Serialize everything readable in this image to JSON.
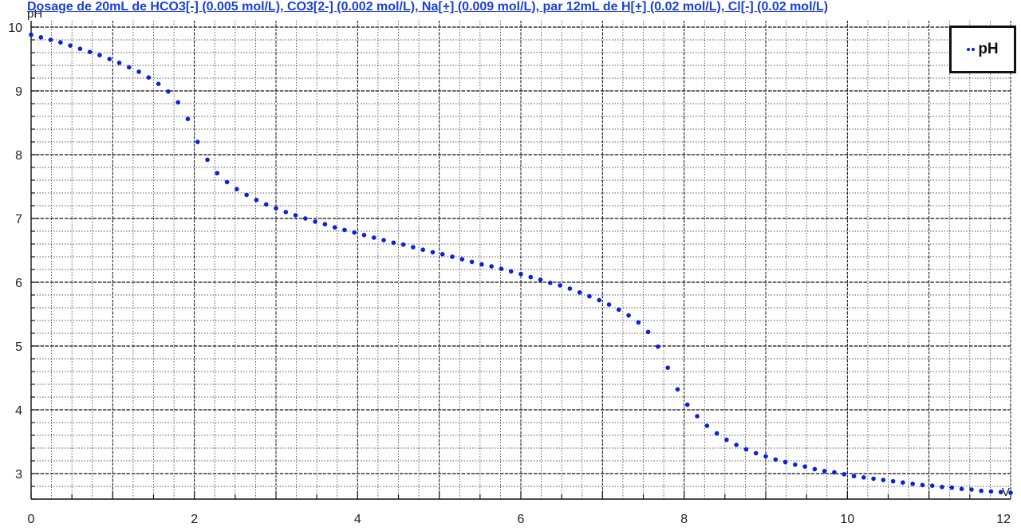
{
  "colors": {
    "series": "#0a22d8",
    "title": "#1a3fd8",
    "grid": "#222222"
  },
  "chart_data": {
    "type": "scatter",
    "title": "Dosage de 20mL de HCO3[-] (0.005 mol/L), CO3[2-] (0.002 mol/L), Na[+] (0.009 mol/L),  par 12mL  de H[+] (0.02 mol/L), Cl[-] (0.02 mol/L)",
    "xlabel": "V",
    "ylabel": "pH",
    "xlim": [
      0,
      12
    ],
    "ylim": [
      2.6,
      10.1
    ],
    "x_ticks": [
      0,
      2,
      4,
      6,
      8,
      10,
      12
    ],
    "y_ticks": [
      3,
      4,
      5,
      6,
      7,
      8,
      9,
      10
    ],
    "grid": true,
    "legend_position": "top-right",
    "series": [
      {
        "name": "pH",
        "x": [
          0,
          0.12,
          0.24,
          0.36,
          0.48,
          0.6,
          0.72,
          0.84,
          0.96,
          1.08,
          1.2,
          1.32,
          1.44,
          1.56,
          1.68,
          1.8,
          1.92,
          2.04,
          2.16,
          2.28,
          2.4,
          2.52,
          2.64,
          2.76,
          2.88,
          3.0,
          3.12,
          3.24,
          3.36,
          3.48,
          3.6,
          3.72,
          3.84,
          3.96,
          4.08,
          4.2,
          4.32,
          4.44,
          4.56,
          4.68,
          4.8,
          4.92,
          5.04,
          5.16,
          5.28,
          5.4,
          5.52,
          5.64,
          5.76,
          5.88,
          6.0,
          6.12,
          6.24,
          6.36,
          6.48,
          6.6,
          6.72,
          6.84,
          6.96,
          7.08,
          7.2,
          7.32,
          7.44,
          7.56,
          7.68,
          7.8,
          7.92,
          8.04,
          8.16,
          8.28,
          8.4,
          8.52,
          8.64,
          8.76,
          8.88,
          9.0,
          9.12,
          9.24,
          9.36,
          9.48,
          9.6,
          9.72,
          9.84,
          9.96,
          10.08,
          10.2,
          10.32,
          10.44,
          10.56,
          10.68,
          10.8,
          10.92,
          11.04,
          11.16,
          11.28,
          11.4,
          11.52,
          11.64,
          11.76,
          11.88,
          12.0
        ],
        "y": [
          9.88,
          9.84,
          9.8,
          9.76,
          9.71,
          9.66,
          9.61,
          9.56,
          9.5,
          9.44,
          9.37,
          9.3,
          9.21,
          9.11,
          8.99,
          8.82,
          8.56,
          8.2,
          7.92,
          7.71,
          7.57,
          7.46,
          7.37,
          7.29,
          7.22,
          7.16,
          7.1,
          7.05,
          7.0,
          6.95,
          6.91,
          6.86,
          6.82,
          6.78,
          6.74,
          6.7,
          6.66,
          6.62,
          6.59,
          6.55,
          6.51,
          6.47,
          6.44,
          6.4,
          6.36,
          6.32,
          6.28,
          6.25,
          6.21,
          6.17,
          6.13,
          6.08,
          6.04,
          5.99,
          5.95,
          5.9,
          5.84,
          5.78,
          5.72,
          5.65,
          5.57,
          5.48,
          5.37,
          5.22,
          4.99,
          4.66,
          4.32,
          4.08,
          3.9,
          3.75,
          3.63,
          3.53,
          3.45,
          3.38,
          3.32,
          3.27,
          3.22,
          3.18,
          3.14,
          3.11,
          3.07,
          3.04,
          3.02,
          2.99,
          2.96,
          2.94,
          2.92,
          2.9,
          2.88,
          2.86,
          2.84,
          2.82,
          2.81,
          2.79,
          2.78,
          2.76,
          2.75,
          2.73,
          2.72,
          2.71,
          2.7
        ]
      }
    ]
  }
}
